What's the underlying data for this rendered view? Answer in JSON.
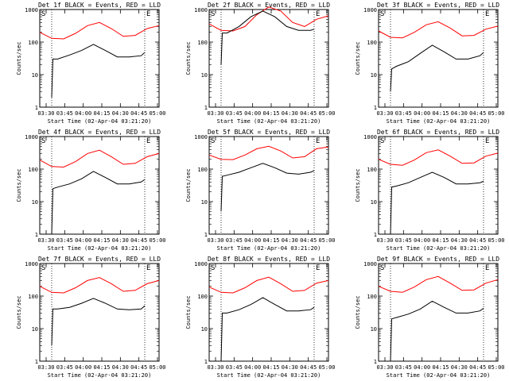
{
  "chart_data": [
    {
      "type": "line",
      "title": "Det 1f BLACK = Events, RED = LLD",
      "xlabel": "Start Time (02-Apr-04 03:21:20)",
      "ylabel": "Counts/sec",
      "yscale": "log",
      "ylim": [
        1,
        1000
      ],
      "yticks": [
        1,
        10,
        100,
        1000
      ],
      "ytick_labels": [
        "1",
        "10",
        "100",
        "1000"
      ],
      "xlim": [
        0,
        100
      ],
      "xtick_labels": [
        "03:30",
        "03:45",
        "04:00",
        "04:15",
        "04:30",
        "04:45",
        "05:00"
      ],
      "markers": [
        "S",
        "E"
      ],
      "series": [
        {
          "color": "#ff0000",
          "x": [
            0,
            10,
            20,
            30,
            40,
            50,
            60,
            70,
            80,
            90,
            100
          ],
          "y": [
            200,
            130,
            125,
            185,
            320,
            400,
            260,
            150,
            160,
            260,
            320
          ]
        },
        {
          "color": "#000000",
          "x": [
            10,
            11,
            15,
            25,
            35,
            45,
            55,
            65,
            75,
            85,
            88
          ],
          "y": [
            2,
            30,
            30,
            40,
            55,
            85,
            55,
            35,
            35,
            38,
            48
          ]
        }
      ]
    },
    {
      "type": "line",
      "title": "Det 2f BLACK = Events, RED = LLD",
      "xlabel": "Start Time (02-Apr-04 03:21:20)",
      "ylabel": "Counts/sec",
      "yscale": "log",
      "ylim": [
        1,
        1000
      ],
      "yticks": [
        1,
        10,
        100,
        1000
      ],
      "ytick_labels": [
        "1",
        "10",
        "100",
        "1000"
      ],
      "xlim": [
        0,
        100
      ],
      "xtick_labels": [
        "03:30",
        "03:45",
        "04:00",
        "04:15",
        "04:30",
        "04:45",
        "05:00"
      ],
      "markers": [
        "S",
        "E"
      ],
      "series": [
        {
          "color": "#ff0000",
          "x": [
            0,
            10,
            20,
            30,
            40,
            50,
            60,
            70,
            80,
            90,
            100
          ],
          "y": [
            360,
            230,
            220,
            300,
            700,
            1200,
            900,
            400,
            300,
            500,
            640
          ]
        },
        {
          "color": "#000000",
          "x": [
            10,
            11,
            15,
            25,
            35,
            45,
            55,
            65,
            75,
            85,
            88
          ],
          "y": [
            20,
            190,
            190,
            300,
            600,
            900,
            600,
            300,
            230,
            230,
            250
          ]
        }
      ]
    },
    {
      "type": "line",
      "title": "Det 3f BLACK = Events, RED = LLD",
      "xlabel": "Start Time (02-Apr-04 03:21:20)",
      "ylabel": "Counts/sec",
      "yscale": "log",
      "ylim": [
        1,
        1000
      ],
      "yticks": [
        1,
        10,
        100,
        1000
      ],
      "ytick_labels": [
        "1",
        "10",
        "100",
        "1000"
      ],
      "xlim": [
        0,
        100
      ],
      "xtick_labels": [
        "03:30",
        "03:45",
        "04:00",
        "04:15",
        "04:30",
        "04:45",
        "05:00"
      ],
      "markers": [
        "S",
        "E"
      ],
      "series": [
        {
          "color": "#ff0000",
          "x": [
            0,
            10,
            20,
            30,
            40,
            50,
            60,
            70,
            80,
            90,
            100
          ],
          "y": [
            220,
            140,
            135,
            200,
            340,
            420,
            270,
            155,
            160,
            250,
            310
          ]
        },
        {
          "color": "#000000",
          "x": [
            10,
            11,
            15,
            25,
            35,
            45,
            55,
            65,
            75,
            85,
            88
          ],
          "y": [
            3,
            15,
            18,
            25,
            45,
            80,
            50,
            30,
            30,
            38,
            48
          ]
        }
      ]
    },
    {
      "type": "line",
      "title": "Det 4f BLACK = Events, RED = LLD",
      "xlabel": "Start Time (02-Apr-04 03:21:20)",
      "ylabel": "Counts/sec",
      "yscale": "log",
      "ylim": [
        1,
        1000
      ],
      "yticks": [
        1,
        10,
        100,
        1000
      ],
      "ytick_labels": [
        "1",
        "10",
        "100",
        "1000"
      ],
      "xlim": [
        0,
        100
      ],
      "xtick_labels": [
        "03:30",
        "03:45",
        "04:00",
        "04:15",
        "04:30",
        "04:45",
        "05:00"
      ],
      "markers": [
        "S",
        "E"
      ],
      "series": [
        {
          "color": "#ff0000",
          "x": [
            0,
            10,
            20,
            30,
            40,
            50,
            60,
            70,
            80,
            90,
            100
          ],
          "y": [
            190,
            120,
            115,
            170,
            300,
            380,
            240,
            140,
            150,
            240,
            300
          ]
        },
        {
          "color": "#000000",
          "x": [
            10,
            11,
            15,
            25,
            35,
            45,
            55,
            65,
            75,
            85,
            88
          ],
          "y": [
            1,
            25,
            28,
            35,
            50,
            85,
            55,
            35,
            35,
            40,
            48
          ]
        }
      ]
    },
    {
      "type": "line",
      "title": "Det 5f BLACK = Events, RED = LLD",
      "xlabel": "Start Time (02-Apr-04 03:21:20)",
      "ylabel": "Counts/sec",
      "yscale": "log",
      "ylim": [
        1,
        1000
      ],
      "yticks": [
        1,
        10,
        100,
        1000
      ],
      "ytick_labels": [
        "1",
        "10",
        "100",
        "1000"
      ],
      "xlim": [
        0,
        100
      ],
      "xtick_labels": [
        "03:30",
        "03:45",
        "04:00",
        "04:15",
        "04:30",
        "04:45",
        "05:00"
      ],
      "markers": [
        "S",
        "E"
      ],
      "series": [
        {
          "color": "#ff0000",
          "x": [
            0,
            10,
            20,
            30,
            40,
            50,
            60,
            70,
            80,
            90,
            100
          ],
          "y": [
            270,
            200,
            195,
            270,
            420,
            500,
            360,
            220,
            240,
            420,
            480
          ]
        },
        {
          "color": "#000000",
          "x": [
            10,
            11,
            15,
            25,
            35,
            45,
            55,
            65,
            75,
            85,
            88
          ],
          "y": [
            5,
            60,
            65,
            80,
            110,
            150,
            110,
            75,
            70,
            80,
            90
          ]
        }
      ]
    },
    {
      "type": "line",
      "title": "Det 6f BLACK = Events, RED = LLD",
      "xlabel": "Start Time (02-Apr-04 03:21:20)",
      "ylabel": "Counts/sec",
      "yscale": "log",
      "ylim": [
        1,
        1000
      ],
      "yticks": [
        1,
        10,
        100,
        1000
      ],
      "ytick_labels": [
        "1",
        "10",
        "100",
        "1000"
      ],
      "xlim": [
        0,
        100
      ],
      "xtick_labels": [
        "03:30",
        "03:45",
        "04:00",
        "04:15",
        "04:30",
        "04:45",
        "05:00"
      ],
      "markers": [
        "S",
        "E"
      ],
      "series": [
        {
          "color": "#ff0000",
          "x": [
            0,
            10,
            20,
            30,
            40,
            50,
            60,
            70,
            80,
            90,
            100
          ],
          "y": [
            200,
            140,
            130,
            190,
            320,
            390,
            250,
            150,
            155,
            250,
            310
          ]
        },
        {
          "color": "#000000",
          "x": [
            10,
            11,
            15,
            25,
            35,
            45,
            55,
            65,
            75,
            85,
            88
          ],
          "y": [
            1,
            28,
            30,
            38,
            55,
            80,
            55,
            35,
            35,
            38,
            42
          ]
        }
      ]
    },
    {
      "type": "line",
      "title": "Det 7f BLACK = Events, RED = LLD",
      "xlabel": "Start Time (02-Apr-04 03:21:20)",
      "ylabel": "Counts/sec",
      "yscale": "log",
      "ylim": [
        1,
        1000
      ],
      "yticks": [
        1,
        10,
        100,
        1000
      ],
      "ytick_labels": [
        "1",
        "10",
        "100",
        "1000"
      ],
      "xlim": [
        0,
        100
      ],
      "xtick_labels": [
        "03:30",
        "03:45",
        "04:00",
        "04:15",
        "04:30",
        "04:45",
        "05:00"
      ],
      "markers": [
        "S",
        "E"
      ],
      "series": [
        {
          "color": "#ff0000",
          "x": [
            0,
            10,
            20,
            30,
            40,
            50,
            60,
            70,
            80,
            90,
            100
          ],
          "y": [
            200,
            130,
            125,
            180,
            300,
            370,
            240,
            140,
            150,
            240,
            300
          ]
        },
        {
          "color": "#000000",
          "x": [
            10,
            11,
            15,
            25,
            35,
            45,
            55,
            65,
            75,
            85,
            88
          ],
          "y": [
            3,
            40,
            40,
            45,
            60,
            85,
            60,
            40,
            38,
            40,
            50
          ]
        }
      ]
    },
    {
      "type": "line",
      "title": "Det 8f BLACK = Events, RED = LLD",
      "xlabel": "Start Time (02-Apr-04 03:21:20)",
      "ylabel": "Counts/sec",
      "yscale": "log",
      "ylim": [
        1,
        1000
      ],
      "yticks": [
        1,
        10,
        100,
        1000
      ],
      "ytick_labels": [
        "1",
        "10",
        "100",
        "1000"
      ],
      "xlim": [
        0,
        100
      ],
      "xtick_labels": [
        "03:30",
        "03:45",
        "04:00",
        "04:15",
        "04:30",
        "04:45",
        "05:00"
      ],
      "markers": [
        "S",
        "E"
      ],
      "series": [
        {
          "color": "#ff0000",
          "x": [
            0,
            10,
            20,
            30,
            40,
            50,
            60,
            70,
            80,
            90,
            100
          ],
          "y": [
            190,
            130,
            125,
            180,
            300,
            380,
            240,
            140,
            150,
            250,
            300
          ]
        },
        {
          "color": "#000000",
          "x": [
            10,
            11,
            15,
            25,
            35,
            45,
            55,
            65,
            75,
            85,
            88
          ],
          "y": [
            1,
            30,
            30,
            38,
            55,
            90,
            55,
            35,
            35,
            38,
            45
          ]
        }
      ]
    },
    {
      "type": "line",
      "title": "Det 9f BLACK = Events, RED = LLD",
      "xlabel": "Start Time (02-Apr-04 03:21:20)",
      "ylabel": "Counts/sec",
      "yscale": "log",
      "ylim": [
        1,
        1000
      ],
      "yticks": [
        1,
        10,
        100,
        1000
      ],
      "ytick_labels": [
        "1",
        "10",
        "100",
        "1000"
      ],
      "xlim": [
        0,
        100
      ],
      "xtick_labels": [
        "03:30",
        "03:45",
        "04:00",
        "04:15",
        "04:30",
        "04:45",
        "05:00"
      ],
      "markers": [
        "S",
        "E"
      ],
      "series": [
        {
          "color": "#ff0000",
          "x": [
            0,
            10,
            20,
            30,
            40,
            50,
            60,
            70,
            80,
            90,
            100
          ],
          "y": [
            200,
            140,
            130,
            190,
            320,
            400,
            250,
            150,
            155,
            250,
            320
          ]
        },
        {
          "color": "#000000",
          "x": [
            10,
            11,
            15,
            25,
            35,
            45,
            55,
            65,
            75,
            85,
            88
          ],
          "y": [
            1,
            20,
            22,
            28,
            40,
            70,
            45,
            30,
            30,
            35,
            42
          ]
        }
      ]
    }
  ]
}
